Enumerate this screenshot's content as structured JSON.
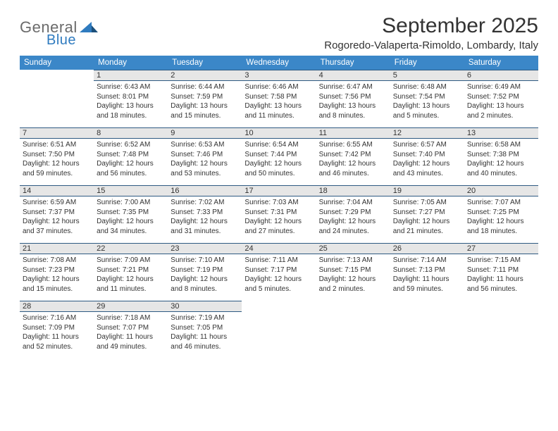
{
  "logo": {
    "general": "General",
    "blue": "Blue"
  },
  "title": "September 2025",
  "location": "Rogoredo-Valaperta-Rimoldo, Lombardy, Italy",
  "colors": {
    "header_bg": "#3b87c8",
    "header_text": "#ffffff",
    "daynum_bg": "#e6e6e6",
    "daynum_border": "#2e5a82",
    "text": "#333333",
    "logo_gray": "#6b6b6b",
    "logo_blue": "#2f7bbf",
    "page_bg": "#ffffff"
  },
  "weekdays": [
    "Sunday",
    "Monday",
    "Tuesday",
    "Wednesday",
    "Thursday",
    "Friday",
    "Saturday"
  ],
  "weeks": [
    [
      null,
      {
        "n": "1",
        "sr": "Sunrise: 6:43 AM",
        "ss": "Sunset: 8:01 PM",
        "d1": "Daylight: 13 hours",
        "d2": "and 18 minutes."
      },
      {
        "n": "2",
        "sr": "Sunrise: 6:44 AM",
        "ss": "Sunset: 7:59 PM",
        "d1": "Daylight: 13 hours",
        "d2": "and 15 minutes."
      },
      {
        "n": "3",
        "sr": "Sunrise: 6:46 AM",
        "ss": "Sunset: 7:58 PM",
        "d1": "Daylight: 13 hours",
        "d2": "and 11 minutes."
      },
      {
        "n": "4",
        "sr": "Sunrise: 6:47 AM",
        "ss": "Sunset: 7:56 PM",
        "d1": "Daylight: 13 hours",
        "d2": "and 8 minutes."
      },
      {
        "n": "5",
        "sr": "Sunrise: 6:48 AM",
        "ss": "Sunset: 7:54 PM",
        "d1": "Daylight: 13 hours",
        "d2": "and 5 minutes."
      },
      {
        "n": "6",
        "sr": "Sunrise: 6:49 AM",
        "ss": "Sunset: 7:52 PM",
        "d1": "Daylight: 13 hours",
        "d2": "and 2 minutes."
      }
    ],
    [
      {
        "n": "7",
        "sr": "Sunrise: 6:51 AM",
        "ss": "Sunset: 7:50 PM",
        "d1": "Daylight: 12 hours",
        "d2": "and 59 minutes."
      },
      {
        "n": "8",
        "sr": "Sunrise: 6:52 AM",
        "ss": "Sunset: 7:48 PM",
        "d1": "Daylight: 12 hours",
        "d2": "and 56 minutes."
      },
      {
        "n": "9",
        "sr": "Sunrise: 6:53 AM",
        "ss": "Sunset: 7:46 PM",
        "d1": "Daylight: 12 hours",
        "d2": "and 53 minutes."
      },
      {
        "n": "10",
        "sr": "Sunrise: 6:54 AM",
        "ss": "Sunset: 7:44 PM",
        "d1": "Daylight: 12 hours",
        "d2": "and 50 minutes."
      },
      {
        "n": "11",
        "sr": "Sunrise: 6:55 AM",
        "ss": "Sunset: 7:42 PM",
        "d1": "Daylight: 12 hours",
        "d2": "and 46 minutes."
      },
      {
        "n": "12",
        "sr": "Sunrise: 6:57 AM",
        "ss": "Sunset: 7:40 PM",
        "d1": "Daylight: 12 hours",
        "d2": "and 43 minutes."
      },
      {
        "n": "13",
        "sr": "Sunrise: 6:58 AM",
        "ss": "Sunset: 7:38 PM",
        "d1": "Daylight: 12 hours",
        "d2": "and 40 minutes."
      }
    ],
    [
      {
        "n": "14",
        "sr": "Sunrise: 6:59 AM",
        "ss": "Sunset: 7:37 PM",
        "d1": "Daylight: 12 hours",
        "d2": "and 37 minutes."
      },
      {
        "n": "15",
        "sr": "Sunrise: 7:00 AM",
        "ss": "Sunset: 7:35 PM",
        "d1": "Daylight: 12 hours",
        "d2": "and 34 minutes."
      },
      {
        "n": "16",
        "sr": "Sunrise: 7:02 AM",
        "ss": "Sunset: 7:33 PM",
        "d1": "Daylight: 12 hours",
        "d2": "and 31 minutes."
      },
      {
        "n": "17",
        "sr": "Sunrise: 7:03 AM",
        "ss": "Sunset: 7:31 PM",
        "d1": "Daylight: 12 hours",
        "d2": "and 27 minutes."
      },
      {
        "n": "18",
        "sr": "Sunrise: 7:04 AM",
        "ss": "Sunset: 7:29 PM",
        "d1": "Daylight: 12 hours",
        "d2": "and 24 minutes."
      },
      {
        "n": "19",
        "sr": "Sunrise: 7:05 AM",
        "ss": "Sunset: 7:27 PM",
        "d1": "Daylight: 12 hours",
        "d2": "and 21 minutes."
      },
      {
        "n": "20",
        "sr": "Sunrise: 7:07 AM",
        "ss": "Sunset: 7:25 PM",
        "d1": "Daylight: 12 hours",
        "d2": "and 18 minutes."
      }
    ],
    [
      {
        "n": "21",
        "sr": "Sunrise: 7:08 AM",
        "ss": "Sunset: 7:23 PM",
        "d1": "Daylight: 12 hours",
        "d2": "and 15 minutes."
      },
      {
        "n": "22",
        "sr": "Sunrise: 7:09 AM",
        "ss": "Sunset: 7:21 PM",
        "d1": "Daylight: 12 hours",
        "d2": "and 11 minutes."
      },
      {
        "n": "23",
        "sr": "Sunrise: 7:10 AM",
        "ss": "Sunset: 7:19 PM",
        "d1": "Daylight: 12 hours",
        "d2": "and 8 minutes."
      },
      {
        "n": "24",
        "sr": "Sunrise: 7:11 AM",
        "ss": "Sunset: 7:17 PM",
        "d1": "Daylight: 12 hours",
        "d2": "and 5 minutes."
      },
      {
        "n": "25",
        "sr": "Sunrise: 7:13 AM",
        "ss": "Sunset: 7:15 PM",
        "d1": "Daylight: 12 hours",
        "d2": "and 2 minutes."
      },
      {
        "n": "26",
        "sr": "Sunrise: 7:14 AM",
        "ss": "Sunset: 7:13 PM",
        "d1": "Daylight: 11 hours",
        "d2": "and 59 minutes."
      },
      {
        "n": "27",
        "sr": "Sunrise: 7:15 AM",
        "ss": "Sunset: 7:11 PM",
        "d1": "Daylight: 11 hours",
        "d2": "and 56 minutes."
      }
    ],
    [
      {
        "n": "28",
        "sr": "Sunrise: 7:16 AM",
        "ss": "Sunset: 7:09 PM",
        "d1": "Daylight: 11 hours",
        "d2": "and 52 minutes."
      },
      {
        "n": "29",
        "sr": "Sunrise: 7:18 AM",
        "ss": "Sunset: 7:07 PM",
        "d1": "Daylight: 11 hours",
        "d2": "and 49 minutes."
      },
      {
        "n": "30",
        "sr": "Sunrise: 7:19 AM",
        "ss": "Sunset: 7:05 PM",
        "d1": "Daylight: 11 hours",
        "d2": "and 46 minutes."
      },
      null,
      null,
      null,
      null
    ]
  ]
}
